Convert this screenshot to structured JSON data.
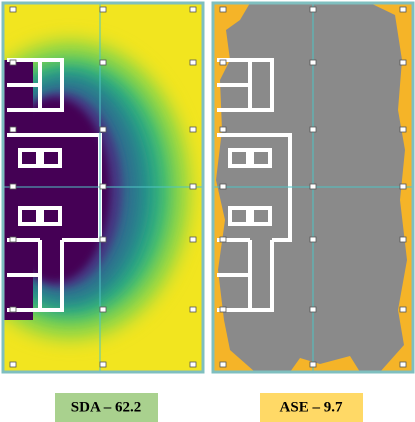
{
  "panels": [
    {
      "label": "SDA – 62.2"
    },
    {
      "label": "ASE – 9.7"
    }
  ]
}
